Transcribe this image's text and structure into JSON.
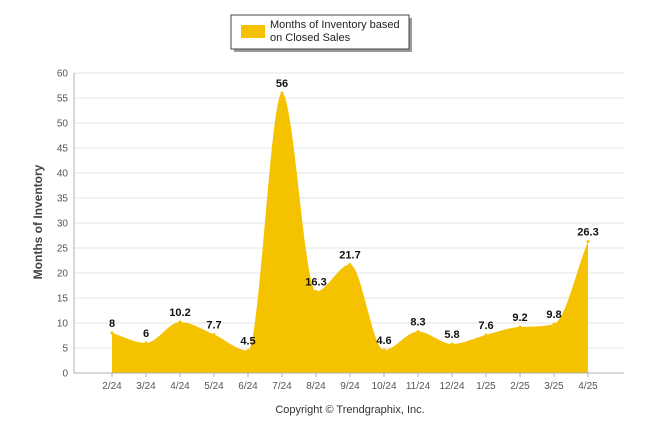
{
  "chart_data": {
    "type": "area",
    "categories": [
      "2/24",
      "3/24",
      "4/24",
      "5/24",
      "6/24",
      "7/24",
      "8/24",
      "9/24",
      "10/24",
      "11/24",
      "12/24",
      "1/25",
      "2/25",
      "3/25",
      "4/25"
    ],
    "series": [
      {
        "name": "Months of Inventory based on Closed Sales",
        "values": [
          8,
          6,
          10.2,
          7.7,
          4.5,
          56,
          16.3,
          21.7,
          4.6,
          8.3,
          5.8,
          7.6,
          9.2,
          9.8,
          26.3
        ],
        "color": "#F5C200"
      }
    ],
    "data_labels": [
      "8",
      "6",
      "10.2",
      "7.7",
      "4.5",
      "56",
      "16.3",
      "21.7",
      "4.6",
      "8.3",
      "5.8",
      "7.6",
      "9.2",
      "9.8",
      "26.3"
    ],
    "ylabel": "Months of Inventory",
    "xlabel": "",
    "ylim": [
      0,
      60
    ],
    "yticks": [
      "0",
      "5",
      "10",
      "15",
      "20",
      "25",
      "30",
      "35",
      "40",
      "45",
      "50",
      "55",
      "60"
    ],
    "grid": true,
    "legend": {
      "position": "top-center",
      "lines": [
        "Months of Inventory based",
        "on Closed Sales"
      ]
    },
    "credit": "Copyright © Trendgraphix, Inc."
  }
}
